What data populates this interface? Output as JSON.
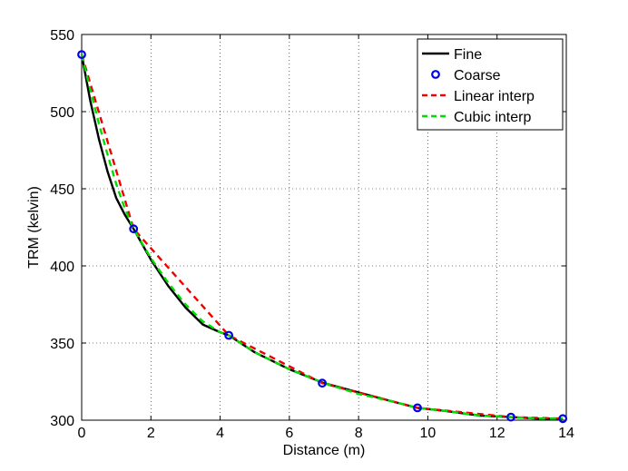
{
  "chart_data": {
    "type": "line",
    "xlabel": "Distance (m)",
    "ylabel": "TRM (kelvin)",
    "xlim": [
      0,
      14
    ],
    "ylim": [
      300,
      550
    ],
    "xticks": [
      0,
      2,
      4,
      6,
      8,
      10,
      12,
      14
    ],
    "yticks": [
      300,
      350,
      400,
      450,
      500,
      550
    ],
    "grid": true,
    "legend_position": "top-right",
    "series": [
      {
        "name": "Fine",
        "style": "solid",
        "color": "#000000",
        "x": [
          0,
          0.25,
          0.5,
          0.75,
          1.0,
          1.25,
          1.5,
          2.0,
          2.5,
          3.0,
          3.5,
          4.0,
          4.25,
          5.0,
          6.0,
          7.0,
          8.0,
          9.0,
          9.7,
          10.5,
          11.5,
          12.4,
          13.2,
          13.9
        ],
        "y": [
          537,
          507,
          482,
          461,
          444,
          433,
          424,
          404,
          387,
          373,
          362,
          357,
          355,
          344,
          333,
          324,
          318,
          312,
          308,
          306,
          303,
          302,
          301,
          301
        ]
      },
      {
        "name": "Coarse",
        "style": "markers",
        "color": "#0000ee",
        "x": [
          0,
          1.5,
          4.25,
          6.95,
          9.7,
          12.4,
          13.9
        ],
        "y": [
          537,
          424,
          355,
          324,
          308,
          302,
          301
        ]
      },
      {
        "name": "Linear interp",
        "style": "dashed",
        "color": "#ee0000",
        "x": [
          0,
          1.5,
          4.25,
          6.95,
          9.7,
          12.4,
          13.9
        ],
        "y": [
          537,
          424,
          355,
          324,
          308,
          302,
          301
        ]
      },
      {
        "name": "Cubic interp",
        "style": "dashed",
        "color": "#00dd00",
        "x": [
          0,
          0.25,
          0.5,
          0.75,
          1.0,
          1.25,
          1.5,
          2.0,
          2.5,
          3.0,
          3.5,
          4.0,
          4.25,
          5.0,
          6.0,
          7.0,
          8.0,
          9.0,
          9.7,
          10.5,
          11.5,
          12.4,
          13.2,
          13.9
        ],
        "y": [
          537,
          514,
          492,
          472,
          453,
          437,
          424,
          405,
          389,
          375,
          364,
          357,
          355,
          344,
          333,
          324,
          317,
          312,
          308,
          306,
          303,
          302,
          301,
          301
        ]
      }
    ]
  }
}
